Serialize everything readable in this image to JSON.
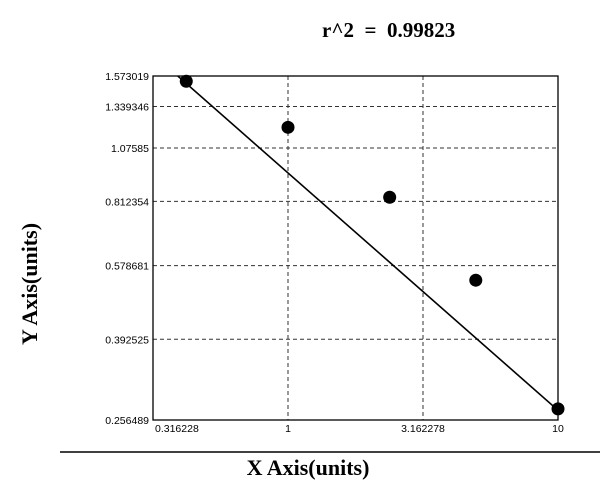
{
  "r_squared": {
    "label": "r^2",
    "equals": "=",
    "value": "0.99823"
  },
  "chart_data": {
    "type": "scatter",
    "title": "",
    "xlabel": "X Axis(units)",
    "ylabel": "Y Axis(units)",
    "x_scale": "log",
    "y_scale": "log",
    "xlim": [
      0.316228,
      10
    ],
    "ylim": [
      0.256489,
      1.573019
    ],
    "x_ticks": [
      "0.316228",
      "1",
      "3.162278",
      "10"
    ],
    "y_ticks": [
      "1.573019",
      "1.339346",
      "1.07585",
      "0.812354",
      "0.578681",
      "0.392525",
      "0.256489"
    ],
    "grid": true,
    "points": [
      {
        "x": 0.42,
        "y": 1.53
      },
      {
        "x": 1.0,
        "y": 1.2
      },
      {
        "x": 2.38,
        "y": 0.83
      },
      {
        "x": 4.96,
        "y": 0.536
      },
      {
        "x": 10.0,
        "y": 0.272
      }
    ],
    "fit_line": {
      "x": [
        0.37,
        10.0
      ],
      "y": [
        1.62,
        0.27
      ]
    },
    "colors": {
      "marker": "#000000",
      "line": "#000000",
      "grid": "#333333"
    }
  }
}
